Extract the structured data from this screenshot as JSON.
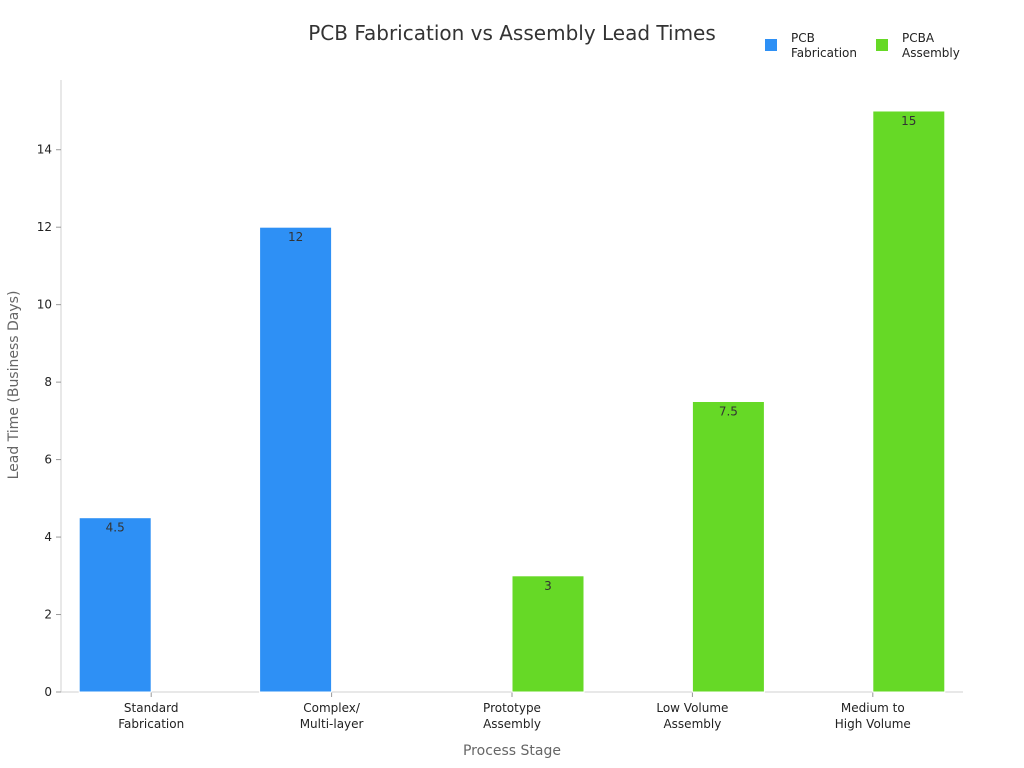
{
  "chart_data": {
    "type": "bar",
    "title": "PCB Fabrication vs Assembly Lead Times",
    "xlabel": "Process Stage",
    "ylabel": "Lead Time (Business Days)",
    "categories": [
      [
        "Standard",
        "Fabrication"
      ],
      [
        "Complex/",
        "Multi-layer"
      ],
      [
        "Prototype",
        "Assembly"
      ],
      [
        "Low Volume",
        "Assembly"
      ],
      [
        "Medium to",
        "High Volume"
      ]
    ],
    "series": [
      {
        "name": [
          "PCB",
          "Fabrication"
        ],
        "color": "#2e90f5",
        "values": [
          4.5,
          12,
          null,
          null,
          null
        ],
        "labels": [
          "4.5",
          "12",
          "",
          "",
          ""
        ]
      },
      {
        "name": [
          "PCBA",
          "Assembly"
        ],
        "color": "#66d926",
        "values": [
          null,
          null,
          3,
          7.5,
          15
        ],
        "labels": [
          "",
          "",
          "3",
          "7.5",
          "15"
        ]
      }
    ],
    "ylim": [
      0,
      15.8
    ],
    "yticks": [
      0,
      2,
      4,
      6,
      8,
      10,
      12,
      14
    ],
    "grid": false,
    "legend": "top-right"
  }
}
